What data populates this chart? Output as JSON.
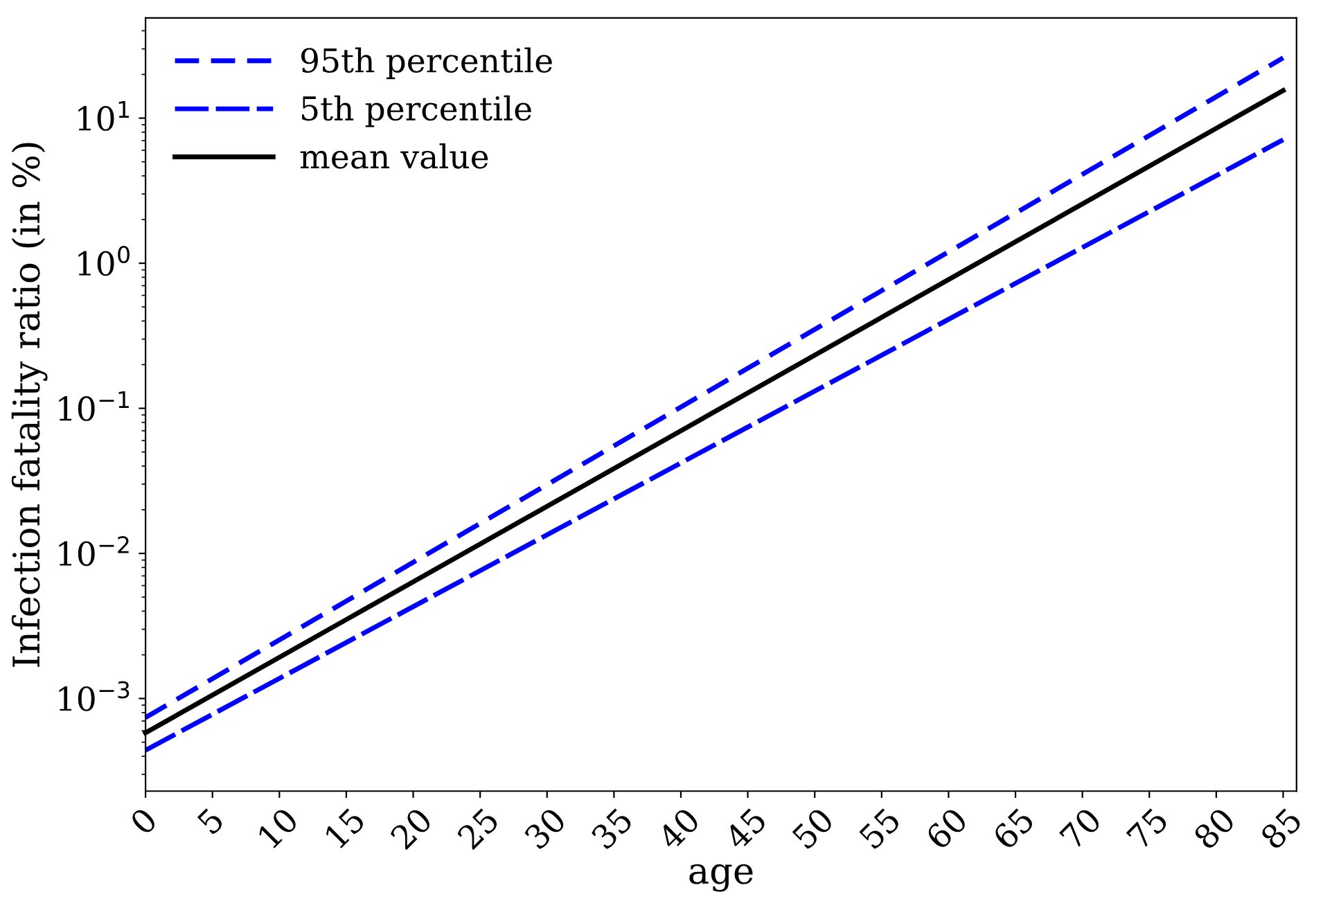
{
  "chart_data": {
    "type": "line",
    "xlabel": "age",
    "ylabel": "Infection fatality ratio (in %)",
    "log": "y",
    "xlim": [
      0,
      86
    ],
    "xticks": [
      0,
      5,
      10,
      15,
      20,
      25,
      30,
      35,
      40,
      45,
      50,
      55,
      60,
      65,
      70,
      75,
      80,
      85
    ],
    "ylim": [
      0.00023,
      49
    ],
    "yticks": [
      {
        "value": 0.001,
        "label": "10$^{−3}$"
      },
      {
        "value": 0.01,
        "label": "10$^{−2}$"
      },
      {
        "value": 0.1,
        "label": "10$^{−1}$"
      },
      {
        "value": 1,
        "label": "10$^{0}$"
      },
      {
        "value": 10,
        "label": "10$^{1}$"
      }
    ],
    "legend": "top left",
    "grid": false,
    "series": [
      {
        "name": "95th percentile",
        "color": "#0000ff",
        "line_style": "dashed",
        "x": [
          0,
          40,
          85
        ],
        "values": [
          0.00074,
          0.102,
          26
        ]
      },
      {
        "name": "5th percentile",
        "color": "#0000ff",
        "line_style": "dashed",
        "x": [
          0,
          40,
          85
        ],
        "values": [
          0.00044,
          0.042,
          7.1
        ]
      },
      {
        "name": "mean value",
        "color": "#000000",
        "line_style": "solid",
        "x": [
          0,
          40,
          85
        ],
        "values": [
          0.00058,
          0.07,
          15.5
        ]
      }
    ]
  }
}
